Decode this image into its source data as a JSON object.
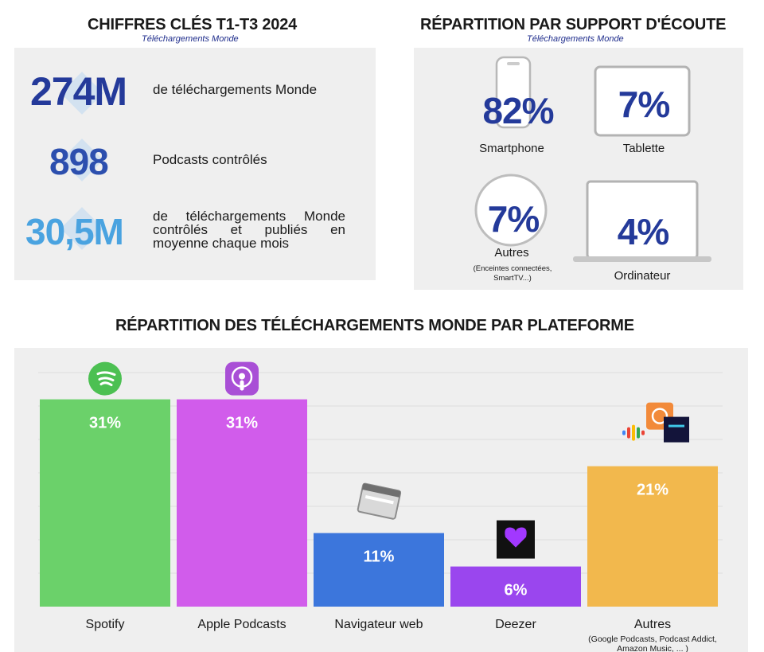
{
  "key_figures": {
    "title": "CHIFFRES CLÉS T1-T3 2024",
    "subtitle": "Téléchargements Monde",
    "items": [
      {
        "value": "274M",
        "text": "de téléchargements Monde",
        "color": "#243a9a"
      },
      {
        "value": "898",
        "text": "Podcasts contrôlés",
        "color": "#2c4fae"
      },
      {
        "value": "30,5M",
        "text": "de téléchargements Monde contrôlés et publiés en moyenne chaque mois",
        "color": "#4aa3e0"
      }
    ]
  },
  "support": {
    "title": "RÉPARTITION PAR SUPPORT D'ÉCOUTE",
    "subtitle": "Téléchargements Monde",
    "devices": [
      {
        "name": "Smartphone",
        "pct": "82%",
        "icon": "smartphone-icon"
      },
      {
        "name": "Tablette",
        "pct": "7%",
        "icon": "tablet-icon"
      },
      {
        "name": "Autres",
        "pct": "7%",
        "note": "(Enceintes connectées, SmartTV...)",
        "icon": "speaker-icon"
      },
      {
        "name": "Ordinateur",
        "pct": "4%",
        "icon": "laptop-icon"
      }
    ]
  },
  "platforms": {
    "title": "RÉPARTITION DES TÉLÉCHARGEMENTS MONDE PAR PLATEFORME"
  },
  "chart_data": {
    "type": "bar",
    "categories": [
      "Spotify",
      "Apple Podcasts",
      "Navigateur web",
      "Deezer",
      "Autres"
    ],
    "values": [
      31,
      31,
      11,
      6,
      21
    ],
    "value_labels": [
      "31%",
      "31%",
      "11%",
      "6%",
      "21%"
    ],
    "category_notes": [
      "",
      "",
      "",
      "",
      "(Google Podcasts, Podcast Addict, Amazon Music, ... )"
    ],
    "colors": [
      "#6bd16a",
      "#d15ceb",
      "#3c76dc",
      "#9a46ee",
      "#f2b84d"
    ],
    "icons": [
      "spotify-icon",
      "apple-podcasts-icon",
      "browser-icon",
      "deezer-icon",
      "other-apps-icon"
    ],
    "ylim": [
      0,
      35
    ],
    "grid": true,
    "legend": "none"
  }
}
